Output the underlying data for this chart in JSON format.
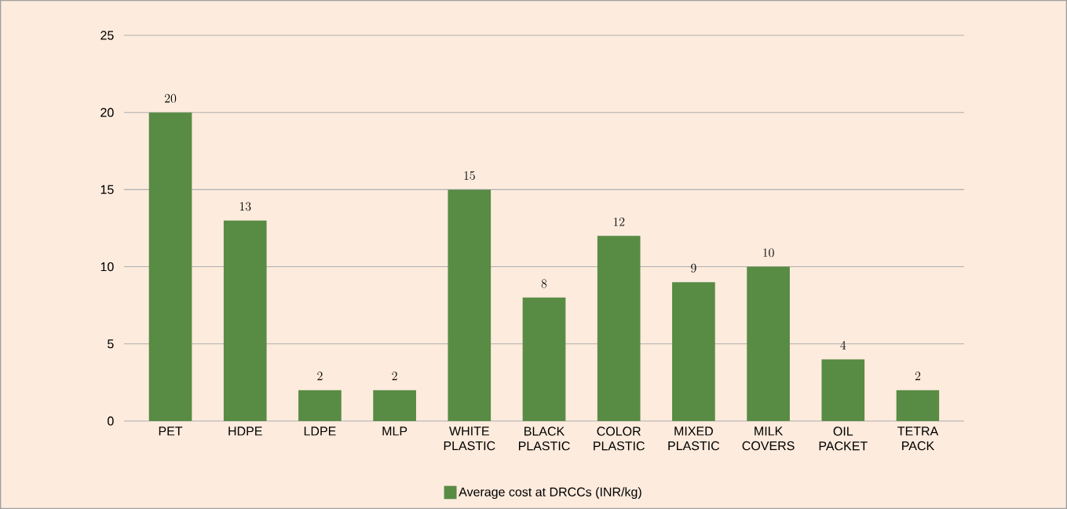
{
  "chart_data": {
    "type": "bar",
    "categories": [
      "PET",
      "HDPE",
      "LDPE",
      "MLP",
      "WHITE PLASTIC",
      "BLACK PLASTIC",
      "COLOR PLASTIC",
      "MIXED PLASTIC",
      "MILK COVERS",
      "OIL PACKET",
      "TETRA PACK"
    ],
    "series": [
      {
        "name": "Average cost at DRCCs (INR/kg)",
        "color": "#588b44",
        "values": [
          20,
          13,
          2,
          2,
          15,
          8,
          12,
          9,
          10,
          4,
          2
        ]
      }
    ],
    "ylim": [
      0,
      25
    ],
    "yticks": [
      0,
      5,
      10,
      15,
      20,
      25
    ],
    "grid": "y",
    "data_labels": true,
    "legend": "bottom"
  }
}
